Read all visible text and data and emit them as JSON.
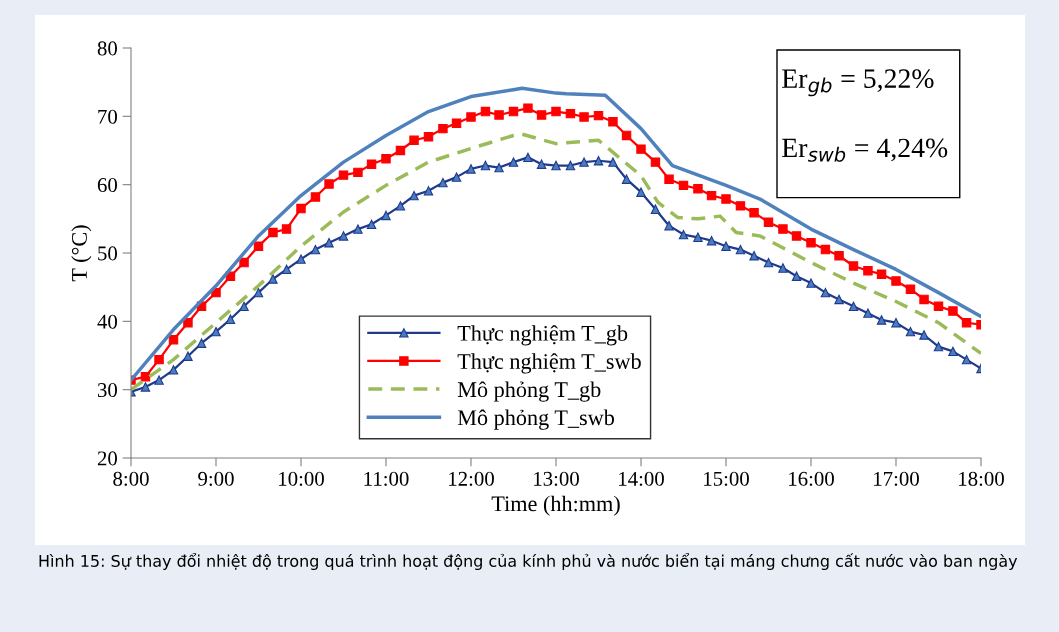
{
  "chart_data": {
    "type": "line",
    "xlabel": "Time (hh:mm)",
    "ylabel": "T (°C)",
    "x": [
      8,
      8.17,
      8.33,
      8.5,
      8.67,
      8.83,
      9,
      9.17,
      9.33,
      9.5,
      9.67,
      9.83,
      10,
      10.17,
      10.33,
      10.5,
      10.67,
      10.83,
      11,
      11.17,
      11.33,
      11.5,
      11.67,
      11.83,
      12,
      12.17,
      12.33,
      12.5,
      12.67,
      12.83,
      13,
      13.17,
      13.33,
      13.5,
      13.67,
      13.83,
      14,
      14.17,
      14.33,
      14.5,
      14.67,
      14.83,
      15,
      15.17,
      15.33,
      15.5,
      15.67,
      15.83,
      16,
      16.17,
      16.33,
      16.5,
      16.67,
      16.83,
      17,
      17.17,
      17.33,
      17.5,
      17.67,
      17.83,
      18
    ],
    "series": [
      {
        "name": "Thực nghiệm T_gb",
        "color": "#1f3a8a",
        "marker": "triangle",
        "line_style": "solid",
        "values": [
          29.7,
          30.4,
          31.4,
          32.9,
          34.9,
          36.8,
          38.5,
          40.3,
          42.2,
          44.2,
          46.2,
          47.6,
          49.1,
          50.5,
          51.5,
          52.5,
          53.5,
          54.2,
          55.5,
          56.9,
          58.4,
          59.1,
          60.3,
          61.1,
          62.3,
          62.8,
          62.5,
          63.3,
          64,
          63,
          62.8,
          62.8,
          63.3,
          63.5,
          63.3,
          60.8,
          58.9,
          56.4,
          54,
          52.7,
          52.3,
          51.8,
          51,
          50.5,
          49.6,
          48.6,
          47.8,
          46.6,
          45.6,
          44.2,
          43.2,
          42.2,
          41.2,
          40.2,
          39.8,
          38.5,
          38,
          36.3,
          35.6,
          34.4,
          33.1
        ]
      },
      {
        "name": "Thực nghiệm T_swb",
        "color": "#ff0000",
        "marker": "square",
        "line_style": "solid",
        "values": [
          31.4,
          31.9,
          34.4,
          37.3,
          39.8,
          42.2,
          44.2,
          46.6,
          48.6,
          51,
          53,
          53.5,
          56.5,
          58.2,
          60.1,
          61.4,
          61.8,
          63,
          63.8,
          65,
          66.5,
          67,
          68.2,
          69,
          69.9,
          70.7,
          70.2,
          70.7,
          71.2,
          70.2,
          70.7,
          70.4,
          69.9,
          70.1,
          69.2,
          67.2,
          65.2,
          63.3,
          60.8,
          59.9,
          59.4,
          58.4,
          57.9,
          56.9,
          55.9,
          54.5,
          53.5,
          52.5,
          51.5,
          50.5,
          49.6,
          48.1,
          47.4,
          46.9,
          45.9,
          44.7,
          43.2,
          42.2,
          41.5,
          39.8,
          39.5
        ]
      },
      {
        "name": "Mô phỏng T_gb",
        "color": "#9bbb59",
        "marker": "none",
        "line_style": "dashed",
        "x": [
          8,
          8.5,
          9,
          9.5,
          10,
          10.5,
          11,
          11.5,
          12,
          12.5,
          12.6,
          13,
          13.5,
          14,
          14.2,
          14.43,
          14.67,
          14.93,
          15.12,
          15.4,
          16,
          16.5,
          17,
          17.5,
          18
        ],
        "values": [
          30,
          34.4,
          39.8,
          45.2,
          51,
          56,
          59.9,
          63.3,
          65.3,
          67.2,
          67.4,
          66,
          66.5,
          61.3,
          57.4,
          55.2,
          55,
          55.4,
          53,
          52.5,
          48.6,
          45.6,
          42.9,
          39.8,
          35.3
        ]
      },
      {
        "name": "Mô phỏng T_swb",
        "color": "#4f81bd",
        "marker": "none",
        "line_style": "solid",
        "x": [
          8,
          8.5,
          9,
          9.5,
          10,
          10.5,
          11,
          11.5,
          12,
          12.5,
          12.6,
          13,
          13.12,
          13.58,
          14,
          14.37,
          15,
          15.4,
          16,
          16.5,
          17,
          17.5,
          18
        ],
        "values": [
          31.4,
          38.8,
          45.2,
          52.5,
          58.4,
          63.3,
          67.2,
          70.7,
          72.9,
          73.9,
          74.1,
          73.4,
          73.3,
          73.1,
          68.2,
          62.8,
          59.9,
          57.9,
          53.5,
          50.5,
          47.6,
          44.2,
          40.7
        ]
      }
    ],
    "xlim": [
      8,
      18
    ],
    "xticks": [
      {
        "value": 8,
        "label": "8:00"
      },
      {
        "value": 9,
        "label": "9:00"
      },
      {
        "value": 10,
        "label": "10:00"
      },
      {
        "value": 11,
        "label": "11:00"
      },
      {
        "value": 12,
        "label": "12:00"
      },
      {
        "value": 13,
        "label": "13:00"
      },
      {
        "value": 14,
        "label": "14:00"
      },
      {
        "value": 15,
        "label": "15:00"
      },
      {
        "value": 16,
        "label": "16:00"
      },
      {
        "value": 17,
        "label": "17:00"
      },
      {
        "value": 18,
        "label": "18:00"
      }
    ],
    "ylim": [
      20,
      80
    ],
    "yticks": [
      20,
      30,
      40,
      50,
      60,
      70,
      80
    ],
    "grid": false,
    "legend": "bottom",
    "annotations": [
      "Er$_{gb}$ = 5,22%",
      "Er$_{swb}$ = 4,24%",
      "Hình 15: Sự thay đổi nhiệt độ trong quá trình hoạt động của kính phủ và nước biển tại máng chưng cất nước vào ban ngày"
    ]
  }
}
